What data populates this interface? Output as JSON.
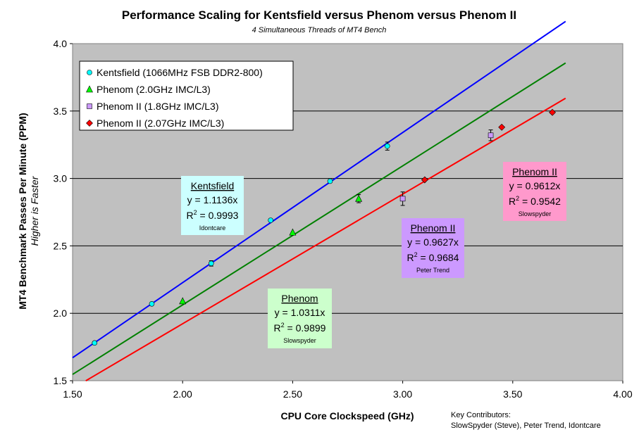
{
  "chart_data": {
    "type": "scatter",
    "title": "Performance Scaling for Kentsfield versus Phenom versus Phenom II",
    "subtitle": "4 Simultaneous Threads of MT4 Bench",
    "xlabel": "CPU Core Clockspeed (GHz)",
    "ylabel": "MT4 Benchmark Passes Per Minute (PPM)",
    "ylabel_sub": "Higher is Faster",
    "xlim": [
      1.5,
      4.0
    ],
    "ylim": [
      1.5,
      4.0
    ],
    "x_ticks": [
      "1.50",
      "2.00",
      "2.50",
      "3.00",
      "3.50",
      "4.00"
    ],
    "y_ticks": [
      "1.5",
      "2.0",
      "2.5",
      "3.0",
      "3.5",
      "4.0"
    ],
    "x_tick_values": [
      1.5,
      2.0,
      2.5,
      3.0,
      3.5,
      4.0
    ],
    "y_tick_values": [
      1.5,
      2.0,
      2.5,
      3.0,
      3.5,
      4.0
    ],
    "grid": "horizontal",
    "legend_position": "top-left",
    "background": "#c0c0c0",
    "series": [
      {
        "name": "Kentsfield (1066MHz FSB DDR2-800)",
        "marker": "circle",
        "color": "#00ffff",
        "line_color": "#0000ff",
        "slope": 1.1136,
        "fit_x_range": [
          1.5,
          3.74
        ],
        "x": [
          1.6,
          1.86,
          2.13,
          2.4,
          2.67,
          2.93
        ],
        "y": [
          1.78,
          2.07,
          2.37,
          2.69,
          2.98,
          3.24
        ],
        "err": [
          0,
          0,
          0.02,
          0,
          0,
          0.03
        ]
      },
      {
        "name": "Phenom (2.0GHz IMC/L3)",
        "marker": "triangle",
        "color": "#00ff00",
        "line_color": "#008000",
        "slope": 1.0311,
        "fit_x_range": [
          1.5,
          3.74
        ],
        "x": [
          2.0,
          2.5,
          2.8
        ],
        "y": [
          2.09,
          2.6,
          2.85
        ],
        "err": [
          0,
          0,
          0.03
        ]
      },
      {
        "name": "Phenom II (1.8GHz IMC/L3)",
        "marker": "square",
        "color": "#cc99ff",
        "line_color": "#ff0000",
        "x": [
          3.0,
          3.4
        ],
        "y": [
          2.85,
          3.32
        ],
        "err": [
          0.05,
          0.04
        ]
      },
      {
        "name": "Phenom II (2.07GHz IMC/L3)",
        "marker": "diamond",
        "color": "#ff0000",
        "line_color": "#ff0000",
        "slope": 0.9612,
        "fit_x_range": [
          1.56,
          3.74
        ],
        "x": [
          3.1,
          3.45,
          3.68
        ],
        "y": [
          2.99,
          3.38,
          3.49
        ],
        "err": [
          0,
          0,
          0
        ]
      }
    ],
    "annotations": [
      {
        "id": "kentsfield",
        "title": "Kentsfield",
        "eq": "y = 1.1136x",
        "r2_label": "R",
        "r2_sup": "2",
        "r2_val": " = 0.9993",
        "contributor": "Idontcare",
        "bg": "#ccffff"
      },
      {
        "id": "phenom",
        "title": "Phenom",
        "eq": "y = 1.0311x",
        "r2_label": "R",
        "r2_sup": "2",
        "r2_val": " = 0.9899",
        "contributor": "Slowspyder",
        "bg": "#ccffcc"
      },
      {
        "id": "phenom2a",
        "title": "Phenom II",
        "eq": "y = 0.9627x",
        "r2_label": "R",
        "r2_sup": "2",
        "r2_val": " = 0.9684",
        "contributor": "Peter Trend",
        "bg": "#cc99ff"
      },
      {
        "id": "phenom2b",
        "title": "Phenom II",
        "eq": "y = 0.9612x",
        "r2_label": "R",
        "r2_sup": "2",
        "r2_val": " = 0.9542",
        "contributor": "Slowspyder",
        "bg": "#ff99cc"
      }
    ],
    "footer": {
      "line1": "Key Contributors:",
      "line2": "SlowSpyder (Steve), Peter Trend, Idontcare"
    }
  }
}
